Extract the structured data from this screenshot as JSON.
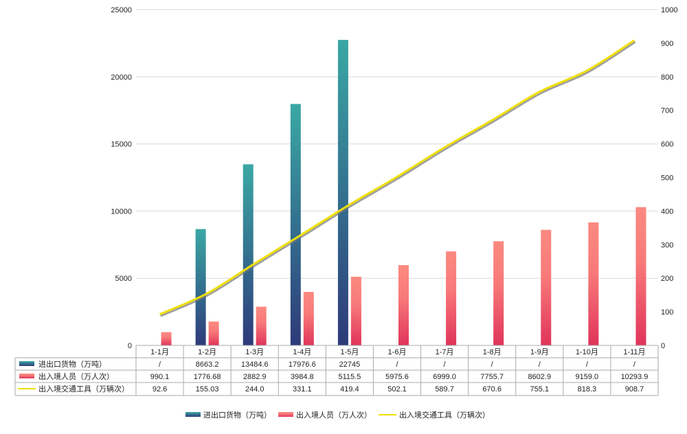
{
  "chart_data": {
    "type": "bar",
    "categories": [
      "1-1月",
      "1-2月",
      "1-3月",
      "1-4月",
      "1-5月",
      "1-6月",
      "1-7月",
      "1-8月",
      "1-9月",
      "1-10月",
      "1-11月"
    ],
    "y_left": {
      "range": [
        0,
        25000
      ],
      "ticks": [
        "0",
        "5000",
        "10000",
        "15000",
        "20000",
        "25000"
      ]
    },
    "y_right": {
      "range": [
        0,
        1000
      ],
      "ticks": [
        "0",
        "100",
        "200",
        "300",
        "400",
        "500",
        "600",
        "700",
        "800",
        "900",
        "1000"
      ]
    },
    "grid": true,
    "legend": "bottom",
    "series": [
      {
        "name": "进出口货物（万吨）",
        "type": "bar",
        "axis": "left",
        "color": "#3a9a9a",
        "labels": [
          "/",
          "8663.2",
          "13484.6",
          "17976.6",
          "22745",
          "/",
          "/",
          "/",
          "/",
          "/",
          "/"
        ],
        "values": [
          null,
          8663.2,
          13484.6,
          17976.6,
          22745,
          null,
          null,
          null,
          null,
          null,
          null
        ]
      },
      {
        "name": "出入境人员（万人次）",
        "type": "bar",
        "axis": "left",
        "color": "#f47a7a",
        "labels": [
          "990.1",
          "1776.68",
          "2882.9",
          "3984.8",
          "5115.5",
          "5975.6",
          "6999.0",
          "7755.7",
          "8602.9",
          "9159.0",
          "10293.9"
        ],
        "values": [
          990.1,
          1776.68,
          2882.9,
          3984.8,
          5115.5,
          5975.6,
          6999.0,
          7755.7,
          8602.9,
          9159.0,
          10293.9
        ]
      },
      {
        "name": "出入境交通工具（万辆次）",
        "type": "line",
        "axis": "right",
        "color": "#f0e000",
        "labels": [
          "92.6",
          "155.03",
          "244.0",
          "331.1",
          "419.4",
          "502.1",
          "589.7",
          "670.6",
          "755.1",
          "818.3",
          "908.7"
        ],
        "values": [
          92.6,
          155.03,
          244.0,
          331.1,
          419.4,
          502.1,
          589.7,
          670.6,
          755.1,
          818.3,
          908.7
        ]
      }
    ]
  }
}
